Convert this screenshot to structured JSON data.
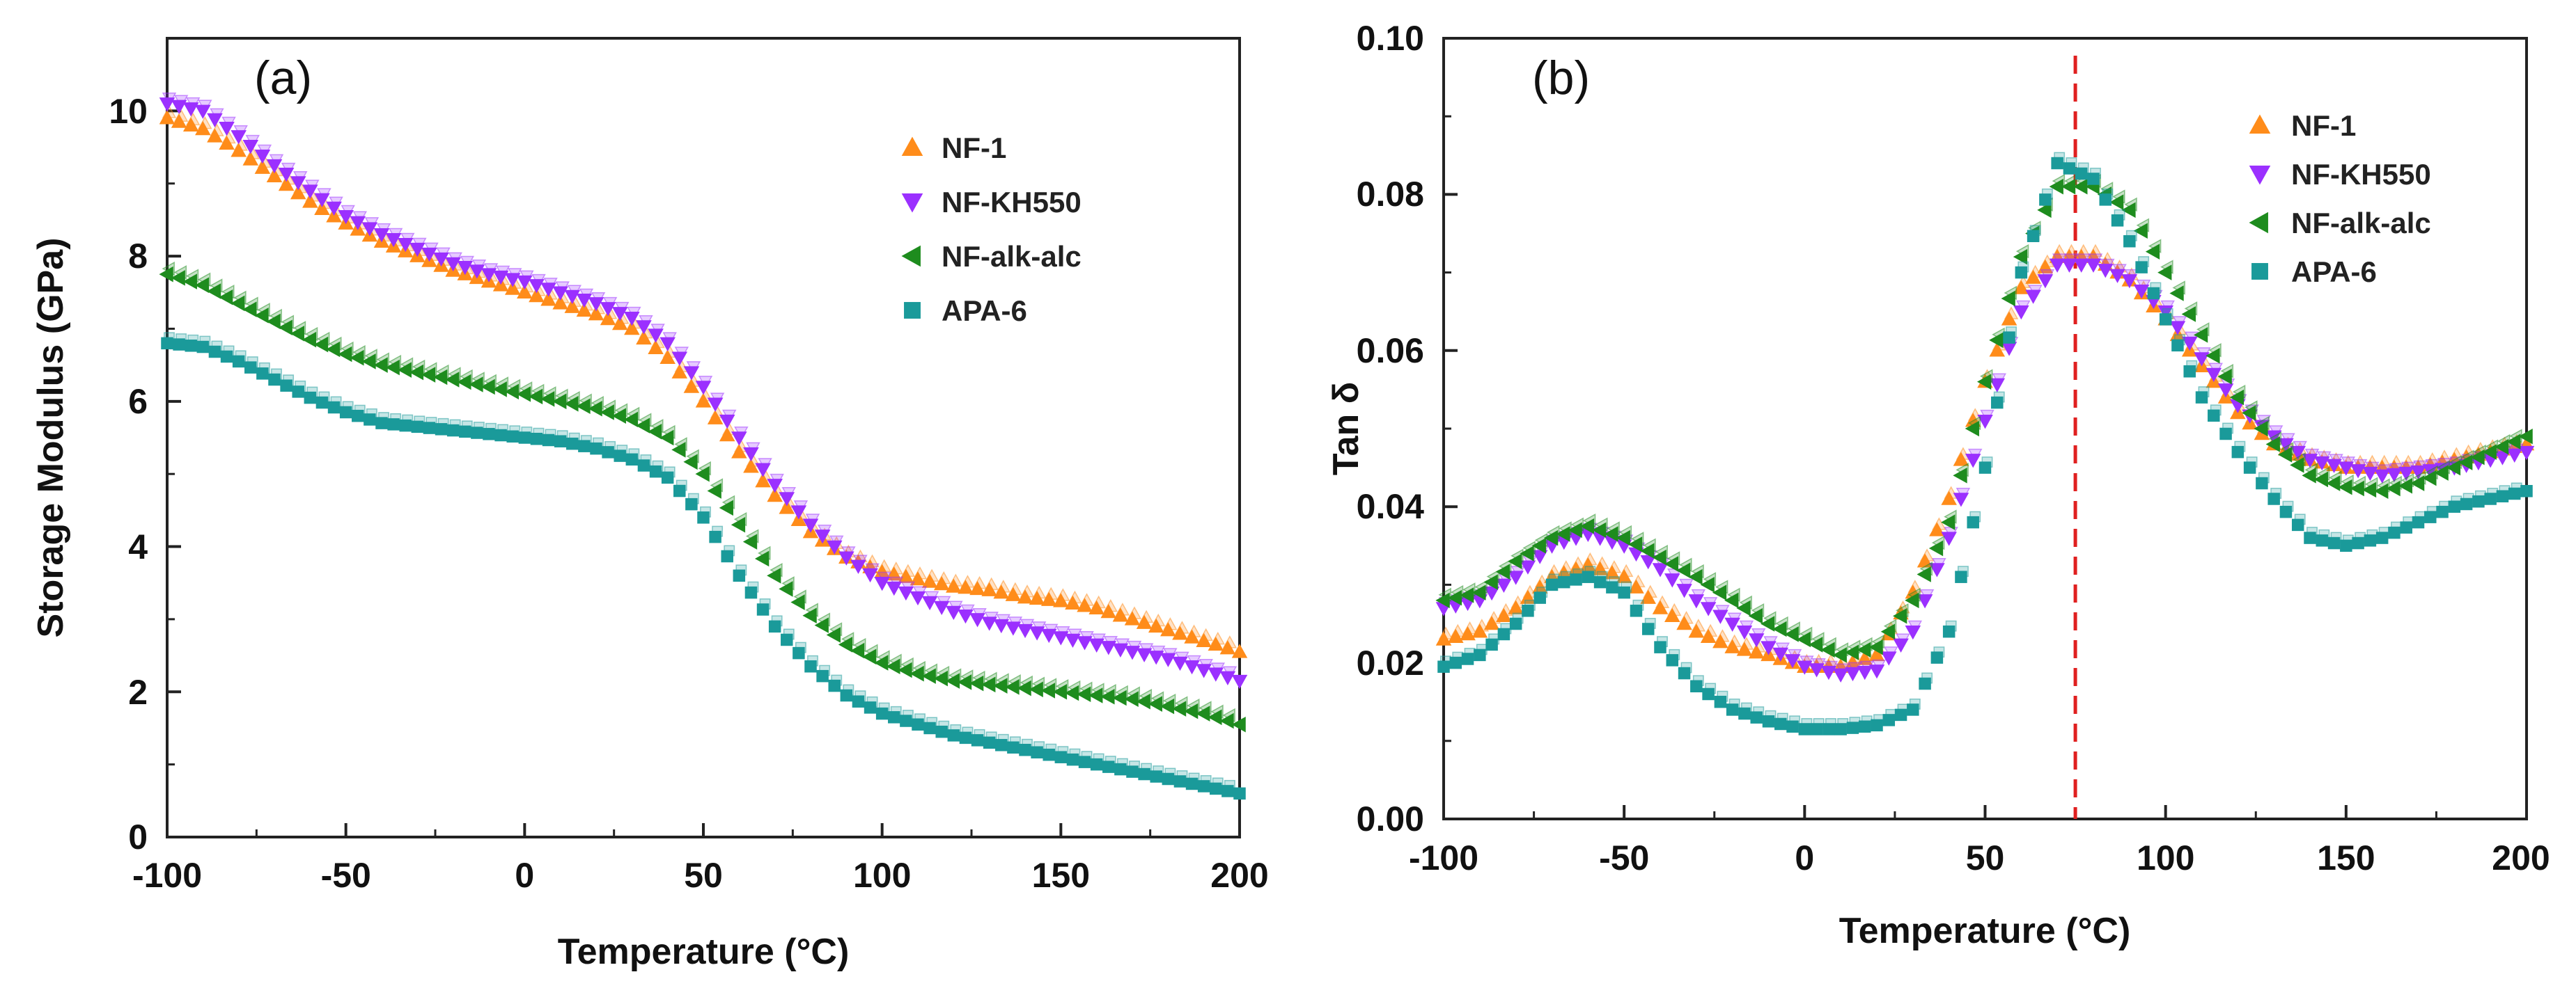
{
  "chart_data": [
    {
      "type": "scatter",
      "panel_label": "(a)",
      "title": "",
      "xlabel": "Temperature (°C)",
      "ylabel": "Storage Modulus (GPa)",
      "xlim": [
        -100,
        200
      ],
      "ylim": [
        0,
        11
      ],
      "xticks": [
        -100,
        -50,
        0,
        50,
        100,
        150,
        200
      ],
      "yticks": [
        0,
        2,
        4,
        6,
        8,
        10
      ],
      "xtick_labels": [
        "-100",
        "-50",
        "0",
        "50",
        "100",
        "150",
        "200"
      ],
      "ytick_labels": [
        "0",
        "2",
        "4",
        "6",
        "8",
        "10"
      ],
      "legend_position": "top-right",
      "series": [
        {
          "name": "NF-1",
          "color": "#FF8C1A",
          "marker": "triangle-up",
          "x": [
            -100,
            -90,
            -80,
            -70,
            -60,
            -50,
            -40,
            -30,
            -20,
            -10,
            0,
            10,
            20,
            30,
            40,
            50,
            60,
            70,
            80,
            90,
            100,
            110,
            120,
            130,
            140,
            150,
            160,
            170,
            180,
            190,
            200
          ],
          "y": [
            9.9,
            9.75,
            9.45,
            9.1,
            8.75,
            8.45,
            8.2,
            8.0,
            7.8,
            7.65,
            7.5,
            7.35,
            7.2,
            7.0,
            6.6,
            6.0,
            5.3,
            4.7,
            4.2,
            3.85,
            3.65,
            3.55,
            3.45,
            3.4,
            3.3,
            3.25,
            3.15,
            3.0,
            2.85,
            2.7,
            2.55
          ]
        },
        {
          "name": "NF-KH550",
          "color": "#9B30FF",
          "marker": "triangle-down",
          "x": [
            -100,
            -90,
            -80,
            -70,
            -60,
            -50,
            -40,
            -30,
            -20,
            -10,
            0,
            10,
            20,
            30,
            40,
            50,
            60,
            70,
            80,
            90,
            100,
            110,
            120,
            130,
            140,
            150,
            160,
            170,
            180,
            190,
            200
          ],
          "y": [
            10.1,
            10.0,
            9.65,
            9.25,
            8.9,
            8.55,
            8.3,
            8.1,
            7.9,
            7.75,
            7.65,
            7.5,
            7.35,
            7.15,
            6.8,
            6.2,
            5.5,
            4.85,
            4.3,
            3.85,
            3.5,
            3.3,
            3.1,
            2.95,
            2.85,
            2.75,
            2.65,
            2.55,
            2.45,
            2.3,
            2.15
          ]
        },
        {
          "name": "NF-alk-alc",
          "color": "#1E8C1E",
          "marker": "triangle-left",
          "x": [
            -100,
            -90,
            -80,
            -70,
            -60,
            -50,
            -40,
            -30,
            -20,
            -10,
            0,
            10,
            20,
            30,
            40,
            50,
            60,
            70,
            80,
            90,
            100,
            110,
            120,
            130,
            140,
            150,
            160,
            170,
            180,
            190,
            200
          ],
          "y": [
            7.75,
            7.6,
            7.35,
            7.1,
            6.85,
            6.65,
            6.5,
            6.4,
            6.3,
            6.2,
            6.1,
            6.0,
            5.9,
            5.75,
            5.5,
            5.0,
            4.3,
            3.6,
            3.05,
            2.65,
            2.4,
            2.25,
            2.15,
            2.1,
            2.05,
            2.0,
            1.95,
            1.9,
            1.8,
            1.7,
            1.55
          ]
        },
        {
          "name": "APA-6",
          "color": "#1A9A9A",
          "marker": "square",
          "x": [
            -100,
            -90,
            -80,
            -70,
            -60,
            -50,
            -40,
            -30,
            -20,
            -10,
            0,
            10,
            20,
            30,
            40,
            50,
            60,
            70,
            80,
            90,
            100,
            110,
            120,
            130,
            140,
            150,
            160,
            170,
            180,
            190,
            200
          ],
          "y": [
            6.8,
            6.75,
            6.55,
            6.3,
            6.05,
            5.85,
            5.7,
            5.65,
            5.6,
            5.55,
            5.5,
            5.45,
            5.35,
            5.2,
            4.95,
            4.4,
            3.6,
            2.9,
            2.35,
            1.95,
            1.7,
            1.55,
            1.4,
            1.3,
            1.2,
            1.1,
            1.0,
            0.9,
            0.8,
            0.7,
            0.6
          ]
        }
      ]
    },
    {
      "type": "scatter",
      "panel_label": "(b)",
      "title": "",
      "xlabel": "Temperature (°C)",
      "ylabel": "Tan δ",
      "xlim": [
        -100,
        200
      ],
      "ylim": [
        0,
        0.1
      ],
      "xticks": [
        -100,
        -50,
        0,
        50,
        100,
        150,
        200
      ],
      "yticks": [
        0,
        0.02,
        0.04,
        0.06,
        0.08,
        0.1
      ],
      "xtick_labels": [
        "-100",
        "-50",
        "0",
        "50",
        "100",
        "150",
        "200"
      ],
      "ytick_labels": [
        "0.00",
        "0.02",
        "0.04",
        "0.06",
        "0.08",
        "0.10"
      ],
      "legend_position": "top-right",
      "reference_line": {
        "x": 75,
        "color": "#E02020",
        "style": "dashed"
      },
      "series": [
        {
          "name": "NF-1",
          "color": "#FF8C1A",
          "marker": "triangle-up",
          "x": [
            -100,
            -90,
            -80,
            -70,
            -60,
            -50,
            -40,
            -30,
            -20,
            -10,
            0,
            10,
            20,
            30,
            40,
            50,
            60,
            70,
            80,
            90,
            100,
            110,
            120,
            130,
            140,
            150,
            160,
            170,
            180,
            190,
            200
          ],
          "y": [
            0.023,
            0.024,
            0.027,
            0.031,
            0.0325,
            0.031,
            0.027,
            0.024,
            0.022,
            0.021,
            0.0195,
            0.0195,
            0.021,
            0.029,
            0.041,
            0.056,
            0.068,
            0.072,
            0.072,
            0.069,
            0.064,
            0.058,
            0.052,
            0.048,
            0.046,
            0.045,
            0.045,
            0.045,
            0.046,
            0.047,
            0.048
          ]
        },
        {
          "name": "NF-KH550",
          "color": "#9B30FF",
          "marker": "triangle-down",
          "x": [
            -100,
            -90,
            -80,
            -70,
            -60,
            -50,
            -40,
            -30,
            -20,
            -10,
            0,
            10,
            20,
            30,
            40,
            50,
            60,
            70,
            80,
            90,
            100,
            110,
            120,
            130,
            140,
            150,
            160,
            170,
            180,
            190,
            200
          ],
          "y": [
            0.027,
            0.028,
            0.031,
            0.035,
            0.0365,
            0.035,
            0.032,
            0.028,
            0.025,
            0.022,
            0.0195,
            0.0185,
            0.019,
            0.024,
            0.036,
            0.051,
            0.065,
            0.071,
            0.071,
            0.069,
            0.065,
            0.059,
            0.053,
            0.049,
            0.046,
            0.045,
            0.044,
            0.0445,
            0.045,
            0.046,
            0.047
          ]
        },
        {
          "name": "NF-alk-alc",
          "color": "#1E8C1E",
          "marker": "triangle-left",
          "x": [
            -100,
            -90,
            -80,
            -70,
            -60,
            -50,
            -40,
            -30,
            -20,
            -10,
            0,
            10,
            20,
            30,
            40,
            50,
            60,
            70,
            80,
            90,
            100,
            110,
            120,
            130,
            140,
            150,
            160,
            170,
            180,
            190,
            200
          ],
          "y": [
            0.028,
            0.029,
            0.033,
            0.036,
            0.0375,
            0.036,
            0.0335,
            0.031,
            0.028,
            0.025,
            0.023,
            0.021,
            0.022,
            0.028,
            0.038,
            0.056,
            0.072,
            0.081,
            0.081,
            0.078,
            0.07,
            0.062,
            0.054,
            0.048,
            0.044,
            0.0425,
            0.042,
            0.043,
            0.045,
            0.047,
            0.049
          ]
        },
        {
          "name": "APA-6",
          "color": "#1A9A9A",
          "marker": "square",
          "x": [
            -100,
            -90,
            -80,
            -70,
            -60,
            -50,
            -40,
            -30,
            -20,
            -10,
            0,
            10,
            20,
            30,
            40,
            50,
            60,
            70,
            80,
            90,
            100,
            110,
            120,
            130,
            140,
            150,
            160,
            170,
            180,
            190,
            200
          ],
          "y": [
            0.0195,
            0.021,
            0.025,
            0.03,
            0.031,
            0.029,
            0.022,
            0.017,
            0.014,
            0.0125,
            0.0115,
            0.0115,
            0.012,
            0.014,
            0.024,
            0.045,
            0.07,
            0.084,
            0.082,
            0.074,
            0.064,
            0.054,
            0.047,
            0.041,
            0.036,
            0.035,
            0.036,
            0.038,
            0.04,
            0.041,
            0.042
          ]
        }
      ]
    }
  ]
}
